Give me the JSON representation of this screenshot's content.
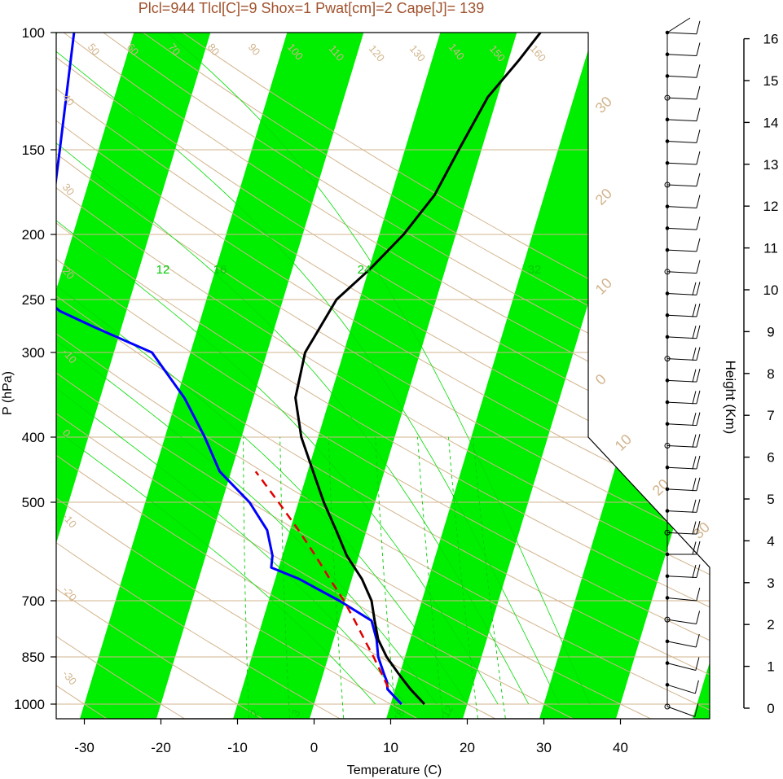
{
  "title": "Plcl=944 Tlcl[C]=9 Shox=1 Pwat[cm]=2 Cape[J]= 139",
  "colors": {
    "band": "#00ee00",
    "isobar": "#d2b48c",
    "dry_adiabat": "#d2b48c",
    "moist_adiabat": "#00dd00",
    "mixing_ratio": "#00cc00",
    "temperature": "#000000",
    "dewpoint": "#0000ff",
    "parcel": "#e00000",
    "title": "#a0522d"
  },
  "chart_data": {
    "type": "skew-t",
    "xlabel": "Temperature (C)",
    "ylabel": "P (hPa)",
    "y2label": "Height (Km)",
    "xlim": [
      -34,
      52
    ],
    "ylim": [
      1050,
      100
    ],
    "pressure_ticks": [
      "100",
      "150",
      "200",
      "250",
      "300",
      "400",
      "500",
      "700",
      "850",
      "1000"
    ],
    "temperature_ticks": [
      "-30",
      "-20",
      "-10",
      "0",
      "10",
      "20",
      "30",
      "40"
    ],
    "height_ticks_km": [
      "0",
      "1",
      "2",
      "3",
      "4",
      "5",
      "6",
      "7",
      "8",
      "9",
      "10",
      "11",
      "12",
      "13",
      "14",
      "15",
      "16"
    ],
    "dry_adiabat_labels": [
      "-30",
      "-20",
      "-10",
      "0",
      "10",
      "20",
      "30",
      "40",
      "50",
      "60",
      "70",
      "80",
      "90",
      "100",
      "110",
      "120",
      "130",
      "140",
      "150",
      "160"
    ],
    "dry_adiabat_labels_right": [
      "-20",
      "-10",
      "0",
      "10",
      "20",
      "30",
      "30",
      "20",
      "10",
      "0",
      "10",
      "20",
      "30"
    ],
    "moist_adiabat_labels": [
      "12",
      "16",
      "24",
      "32"
    ],
    "mixing_ratio_labels": [
      "2",
      "3",
      "8",
      "12"
    ],
    "temperature_profile": [
      {
        "p": 1000,
        "t": 14.4
      },
      {
        "p": 950,
        "t": 12.0
      },
      {
        "p": 925,
        "t": 10.9
      },
      {
        "p": 900,
        "t": 9.8
      },
      {
        "p": 850,
        "t": 7.6
      },
      {
        "p": 800,
        "t": 5.8
      },
      {
        "p": 750,
        "t": 4.6
      },
      {
        "p": 700,
        "t": 3.4
      },
      {
        "p": 650,
        "t": 1.3
      },
      {
        "p": 600,
        "t": -1.6
      },
      {
        "p": 550,
        "t": -4.0
      },
      {
        "p": 500,
        "t": -6.7
      },
      {
        "p": 450,
        "t": -9.3
      },
      {
        "p": 400,
        "t": -12.2
      },
      {
        "p": 350,
        "t": -14.5
      },
      {
        "p": 300,
        "t": -15.0
      },
      {
        "p": 250,
        "t": -13.0
      },
      {
        "p": 225,
        "t": -9.8
      },
      {
        "p": 200,
        "t": -6.8
      },
      {
        "p": 175,
        "t": -4.3
      },
      {
        "p": 150,
        "t": -2.9
      },
      {
        "p": 125,
        "t": -1.2
      },
      {
        "p": 110,
        "t": 1.4
      },
      {
        "p": 100,
        "t": 3.1
      }
    ],
    "dewpoint_profile": [
      {
        "p": 1000,
        "t": 11.4
      },
      {
        "p": 950,
        "t": 9.0
      },
      {
        "p": 925,
        "t": 8.6
      },
      {
        "p": 900,
        "t": 7.9
      },
      {
        "p": 850,
        "t": 6.5
      },
      {
        "p": 800,
        "t": 5.6
      },
      {
        "p": 750,
        "t": 4.2
      },
      {
        "p": 700,
        "t": -0.8
      },
      {
        "p": 650,
        "t": -6.9
      },
      {
        "p": 625,
        "t": -11.0
      },
      {
        "p": 600,
        "t": -11.3
      },
      {
        "p": 550,
        "t": -13.0
      },
      {
        "p": 500,
        "t": -16.4
      },
      {
        "p": 450,
        "t": -21.5
      },
      {
        "p": 400,
        "t": -24.8
      },
      {
        "p": 350,
        "t": -29.0
      },
      {
        "p": 300,
        "t": -35.0
      },
      {
        "p": 275,
        "t": -43.5
      },
      {
        "p": 260,
        "t": -48.7
      },
      {
        "p": 250,
        "t": -50.9
      },
      {
        "p": 220,
        "t": -52.2
      },
      {
        "p": 200,
        "t": -53.1
      },
      {
        "p": 150,
        "t": -55.0
      },
      {
        "p": 100,
        "t": -57.8
      }
    ],
    "parcel_profile": [
      {
        "p": 944,
        "t": 9.0
      },
      {
        "p": 900,
        "t": 7.6
      },
      {
        "p": 850,
        "t": 5.9
      },
      {
        "p": 800,
        "t": 4.0
      },
      {
        "p": 750,
        "t": 2.0
      },
      {
        "p": 700,
        "t": -0.2
      },
      {
        "p": 650,
        "t": -2.9
      },
      {
        "p": 600,
        "t": -5.7
      },
      {
        "p": 550,
        "t": -8.9
      },
      {
        "p": 500,
        "t": -12.6
      },
      {
        "p": 450,
        "t": -16.8
      }
    ]
  }
}
